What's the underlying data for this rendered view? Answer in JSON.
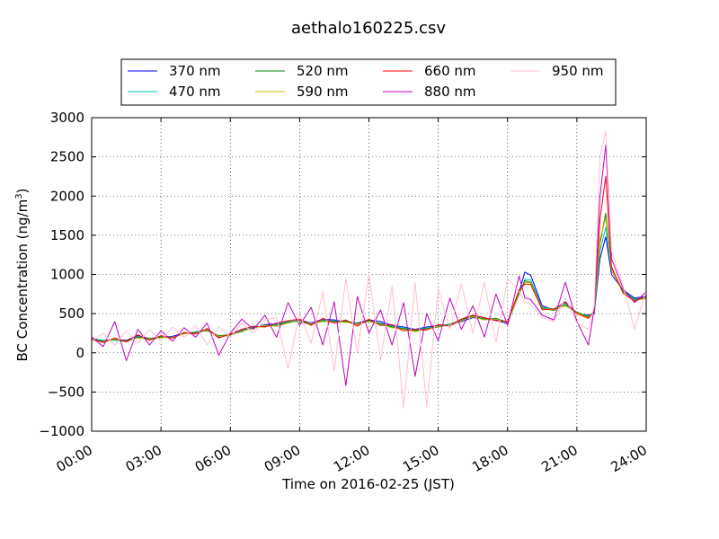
{
  "chart_data": {
    "type": "line",
    "title": "aethalo160225.csv",
    "xlabel": "Time on 2016-02-25 (JST)",
    "ylabel": "BC Concentration (ng/m",
    "ylabel_sup": "3",
    "ylabel_end": ")",
    "x_unit": "hours",
    "xlim": [
      0,
      24
    ],
    "ylim": [
      -1000,
      3000
    ],
    "x_ticks": [
      0,
      3,
      6,
      9,
      12,
      15,
      18,
      21,
      24
    ],
    "x_tick_labels": [
      "00:00",
      "03:00",
      "06:00",
      "09:00",
      "12:00",
      "15:00",
      "18:00",
      "21:00",
      "24:00"
    ],
    "y_ticks": [
      -1000,
      -500,
      0,
      500,
      1000,
      1500,
      2000,
      2500,
      3000
    ],
    "y_tick_labels": [
      "−1000",
      "−500",
      "0",
      "500",
      "1000",
      "1500",
      "2000",
      "2500",
      "3000"
    ],
    "grid": true,
    "legend_position": "top",
    "series": [
      {
        "name": "370 nm",
        "color": "#0000ff",
        "x": [
          0,
          0.5,
          1,
          1.5,
          2,
          2.5,
          3,
          3.5,
          4,
          4.5,
          5,
          5.5,
          6,
          6.5,
          7,
          7.5,
          8,
          8.5,
          9,
          9.5,
          10,
          10.5,
          11,
          11.5,
          12,
          12.5,
          13,
          13.5,
          14,
          14.5,
          15,
          15.5,
          16,
          16.5,
          17,
          17.5,
          18,
          18.5,
          18.75,
          19,
          19.5,
          20,
          20.5,
          21,
          21.5,
          21.75,
          22,
          22.25,
          22.5,
          23,
          23.5,
          24
        ],
        "y": [
          190,
          150,
          170,
          160,
          220,
          180,
          200,
          210,
          250,
          260,
          300,
          200,
          230,
          290,
          320,
          360,
          370,
          390,
          420,
          380,
          430,
          420,
          400,
          380,
          420,
          400,
          350,
          330,
          300,
          330,
          350,
          360,
          400,
          450,
          430,
          420,
          370,
          780,
          1030,
          990,
          600,
          550,
          650,
          500,
          480,
          500,
          1200,
          1480,
          1000,
          800,
          700,
          720
        ]
      },
      {
        "name": "470 nm",
        "color": "#00bfbf",
        "x": [
          0,
          0.5,
          1,
          1.5,
          2,
          2.5,
          3,
          3.5,
          4,
          4.5,
          5,
          5.5,
          6,
          6.5,
          7,
          7.5,
          8,
          8.5,
          9,
          9.5,
          10,
          10.5,
          11,
          11.5,
          12,
          12.5,
          13,
          13.5,
          14,
          14.5,
          15,
          15.5,
          16,
          16.5,
          17,
          17.5,
          18,
          18.5,
          18.75,
          19,
          19.5,
          20,
          20.5,
          21,
          21.5,
          21.75,
          22,
          22.25,
          22.5,
          23,
          23.5,
          24
        ],
        "y": [
          180,
          160,
          160,
          150,
          210,
          170,
          210,
          200,
          240,
          270,
          290,
          210,
          220,
          280,
          330,
          350,
          360,
          400,
          410,
          370,
          420,
          410,
          410,
          370,
          400,
          380,
          340,
          320,
          290,
          320,
          340,
          370,
          410,
          460,
          440,
          430,
          380,
          740,
          940,
          930,
          580,
          560,
          620,
          510,
          470,
          520,
          1300,
          1600,
          1050,
          790,
          690,
          710
        ]
      },
      {
        "name": "520 nm",
        "color": "#008000",
        "x": [
          0,
          0.5,
          1,
          1.5,
          2,
          2.5,
          3,
          3.5,
          4,
          4.5,
          5,
          5.5,
          6,
          6.5,
          7,
          7.5,
          8,
          8.5,
          9,
          9.5,
          10,
          10.5,
          11,
          11.5,
          12,
          12.5,
          13,
          13.5,
          14,
          14.5,
          15,
          15.5,
          16,
          16.5,
          17,
          17.5,
          18,
          18.5,
          18.75,
          19,
          19.5,
          20,
          20.5,
          21,
          21.5,
          21.75,
          22,
          22.25,
          22.5,
          23,
          23.5,
          24
        ],
        "y": [
          170,
          150,
          170,
          140,
          200,
          180,
          200,
          190,
          250,
          260,
          280,
          220,
          230,
          270,
          320,
          340,
          350,
          390,
          400,
          360,
          410,
          400,
          400,
          360,
          410,
          370,
          330,
          310,
          280,
          310,
          330,
          360,
          420,
          470,
          430,
          440,
          390,
          760,
          920,
          900,
          570,
          540,
          610,
          520,
          460,
          530,
          1400,
          1780,
          1080,
          780,
          680,
          700
        ]
      },
      {
        "name": "590 nm",
        "color": "#bfbf00",
        "x": [
          0,
          0.5,
          1,
          1.5,
          2,
          2.5,
          3,
          3.5,
          4,
          4.5,
          5,
          5.5,
          6,
          6.5,
          7,
          7.5,
          8,
          8.5,
          9,
          9.5,
          10,
          10.5,
          11,
          11.5,
          12,
          12.5,
          13,
          13.5,
          14,
          14.5,
          15,
          15.5,
          16,
          16.5,
          17,
          17.5,
          18,
          18.5,
          18.75,
          19,
          19.5,
          20,
          20.5,
          21,
          21.5,
          21.75,
          22,
          22.25,
          22.5,
          23,
          23.5,
          24
        ],
        "y": [
          160,
          140,
          180,
          150,
          190,
          170,
          190,
          200,
          240,
          250,
          290,
          210,
          220,
          280,
          310,
          350,
          340,
          380,
          410,
          370,
          400,
          390,
          390,
          370,
          400,
          360,
          320,
          300,
          270,
          300,
          340,
          350,
          410,
          460,
          420,
          430,
          380,
          750,
          900,
          890,
          560,
          550,
          600,
          510,
          450,
          520,
          1450,
          1720,
          1060,
          770,
          670,
          690
        ]
      },
      {
        "name": "660 nm",
        "color": "#ff0000",
        "x": [
          0,
          0.5,
          1,
          1.5,
          2,
          2.5,
          3,
          3.5,
          4,
          4.5,
          5,
          5.5,
          6,
          6.5,
          7,
          7.5,
          8,
          8.5,
          9,
          9.5,
          10,
          10.5,
          11,
          11.5,
          12,
          12.5,
          13,
          13.5,
          14,
          14.5,
          15,
          15.5,
          16,
          16.5,
          17,
          17.5,
          18,
          18.5,
          18.75,
          19,
          19.5,
          20,
          20.5,
          21,
          21.5,
          21.75,
          22,
          22.25,
          22.5,
          23,
          23.5,
          24
        ],
        "y": [
          180,
          130,
          190,
          140,
          230,
          160,
          220,
          190,
          260,
          240,
          310,
          190,
          240,
          300,
          340,
          330,
          380,
          410,
          430,
          350,
          440,
          380,
          420,
          340,
          430,
          350,
          360,
          280,
          300,
          290,
          360,
          340,
          430,
          480,
          450,
          410,
          400,
          800,
          880,
          870,
          550,
          560,
          640,
          500,
          440,
          540,
          1700,
          2250,
          1100,
          760,
          660,
          720
        ]
      },
      {
        "name": "880 nm",
        "color": "#bf00bf",
        "x": [
          0,
          0.5,
          1,
          1.5,
          2,
          2.5,
          3,
          3.5,
          4,
          4.5,
          5,
          5.5,
          6,
          6.5,
          7,
          7.5,
          8,
          8.5,
          9,
          9.5,
          10,
          10.5,
          11,
          11.5,
          12,
          12.5,
          13,
          13.5,
          14,
          14.5,
          15,
          15.5,
          16,
          16.5,
          17,
          17.5,
          18,
          18.5,
          18.75,
          19,
          19.5,
          20,
          20.5,
          21,
          21.5,
          21.75,
          22,
          22.25,
          22.5,
          23,
          23.5,
          24
        ],
        "y": [
          200,
          80,
          400,
          -100,
          300,
          100,
          280,
          150,
          320,
          200,
          380,
          -30,
          250,
          430,
          300,
          480,
          200,
          640,
          350,
          580,
          100,
          650,
          -420,
          720,
          250,
          550,
          100,
          640,
          -300,
          500,
          150,
          700,
          300,
          600,
          200,
          750,
          350,
          980,
          700,
          680,
          480,
          420,
          900,
          400,
          100,
          560,
          2000,
          2650,
          1200,
          820,
          640,
          780
        ]
      },
      {
        "name": "950 nm",
        "color": "#ffc0cb",
        "x": [
          0,
          0.5,
          1,
          1.5,
          2,
          2.5,
          3,
          3.5,
          4,
          4.5,
          5,
          5.5,
          6,
          6.5,
          7,
          7.5,
          8,
          8.5,
          9,
          9.5,
          10,
          10.5,
          11,
          11.5,
          12,
          12.5,
          13,
          13.5,
          14,
          14.5,
          15,
          15.5,
          16,
          16.5,
          17,
          17.5,
          18,
          18.5,
          18.75,
          19,
          19.5,
          20,
          20.5,
          21,
          21.5,
          21.75,
          22,
          22.25,
          22.5,
          23,
          23.5,
          24
        ],
        "y": [
          150,
          250,
          100,
          280,
          120,
          300,
          150,
          330,
          200,
          350,
          100,
          330,
          200,
          380,
          250,
          420,
          450,
          -200,
          500,
          120,
          780,
          -230,
          950,
          0,
          1000,
          -100,
          850,
          -700,
          900,
          -680,
          820,
          300,
          880,
          250,
          900,
          130,
          950,
          780,
          650,
          620,
          450,
          400,
          700,
          380,
          300,
          600,
          2500,
          2830,
          1300,
          850,
          300,
          800
        ]
      }
    ]
  }
}
